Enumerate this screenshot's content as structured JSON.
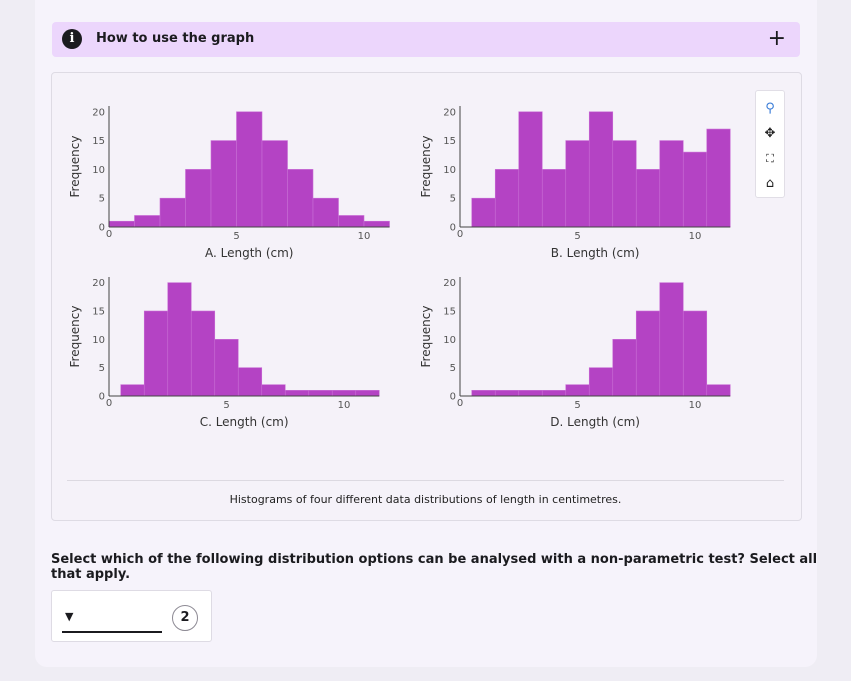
{
  "howto": {
    "title": "How to use the graph",
    "expand_symbol": "+"
  },
  "modebar": {
    "icons": [
      "zoom-icon",
      "pan-icon",
      "autoscale-icon",
      "home-icon"
    ]
  },
  "bar_color": "#b443c4",
  "chart_data": [
    {
      "type": "bar",
      "xlabel": "A. Length (cm)",
      "ylabel": "Frequency",
      "ylim": [
        0,
        21
      ],
      "xticks": [
        5,
        10
      ],
      "yticks": [
        0,
        5,
        10,
        15,
        20
      ],
      "bins": [
        [
          0,
          1,
          1
        ],
        [
          1,
          2,
          2
        ],
        [
          2,
          3,
          5
        ],
        [
          3,
          4,
          10
        ],
        [
          4,
          5,
          15
        ],
        [
          5,
          6,
          20
        ],
        [
          6,
          7,
          15
        ],
        [
          7,
          8,
          10
        ],
        [
          8,
          9,
          5
        ],
        [
          9,
          10,
          2
        ],
        [
          10,
          11,
          1
        ]
      ]
    },
    {
      "type": "bar",
      "xlabel": "B. Length (cm)",
      "ylabel": "Frequency",
      "ylim": [
        0,
        21
      ],
      "xticks": [
        5,
        10
      ],
      "yticks": [
        0,
        5,
        10,
        15,
        20
      ],
      "bins": [
        [
          0.5,
          1.5,
          5
        ],
        [
          1.5,
          2.5,
          10
        ],
        [
          2.5,
          3.5,
          20
        ],
        [
          3.5,
          4.5,
          10
        ],
        [
          4.5,
          5.5,
          15
        ],
        [
          5.5,
          6.5,
          20
        ],
        [
          6.5,
          7.5,
          15
        ],
        [
          7.5,
          8.5,
          10
        ],
        [
          8.5,
          9.5,
          15
        ],
        [
          9.5,
          10.5,
          13
        ],
        [
          10.5,
          11.5,
          17
        ]
      ]
    },
    {
      "type": "bar",
      "xlabel": "C. Length (cm)",
      "ylabel": "Frequency",
      "ylim": [
        0,
        21
      ],
      "xticks": [
        5,
        10
      ],
      "yticks": [
        0,
        5,
        10,
        15,
        20
      ],
      "bins": [
        [
          0.5,
          1.5,
          2
        ],
        [
          1.5,
          2.5,
          15
        ],
        [
          2.5,
          3.5,
          20
        ],
        [
          3.5,
          4.5,
          15
        ],
        [
          4.5,
          5.5,
          10
        ],
        [
          5.5,
          6.5,
          5
        ],
        [
          6.5,
          7.5,
          2
        ],
        [
          7.5,
          8.5,
          1
        ],
        [
          8.5,
          9.5,
          1
        ],
        [
          9.5,
          10.5,
          1
        ],
        [
          10.5,
          11.5,
          1
        ]
      ]
    },
    {
      "type": "bar",
      "xlabel": "D. Length (cm)",
      "ylabel": "Frequency",
      "ylim": [
        0,
        21
      ],
      "xticks": [
        5,
        10
      ],
      "yticks": [
        0,
        5,
        10,
        15,
        20
      ],
      "bins": [
        [
          0.5,
          1.5,
          1
        ],
        [
          1.5,
          2.5,
          1
        ],
        [
          2.5,
          3.5,
          1
        ],
        [
          3.5,
          4.5,
          1
        ],
        [
          4.5,
          5.5,
          2
        ],
        [
          5.5,
          6.5,
          5
        ],
        [
          6.5,
          7.5,
          10
        ],
        [
          7.5,
          8.5,
          15
        ],
        [
          8.5,
          9.5,
          20
        ],
        [
          9.5,
          10.5,
          15
        ],
        [
          10.5,
          11.5,
          2
        ]
      ]
    }
  ],
  "caption": "Histograms of four different data distributions of length in centimetres.",
  "question": "Select which of the following distribution options can be analysed with a non-parametric test? Select all that apply.",
  "answer": {
    "selected_value": "",
    "badge_number": "2"
  }
}
